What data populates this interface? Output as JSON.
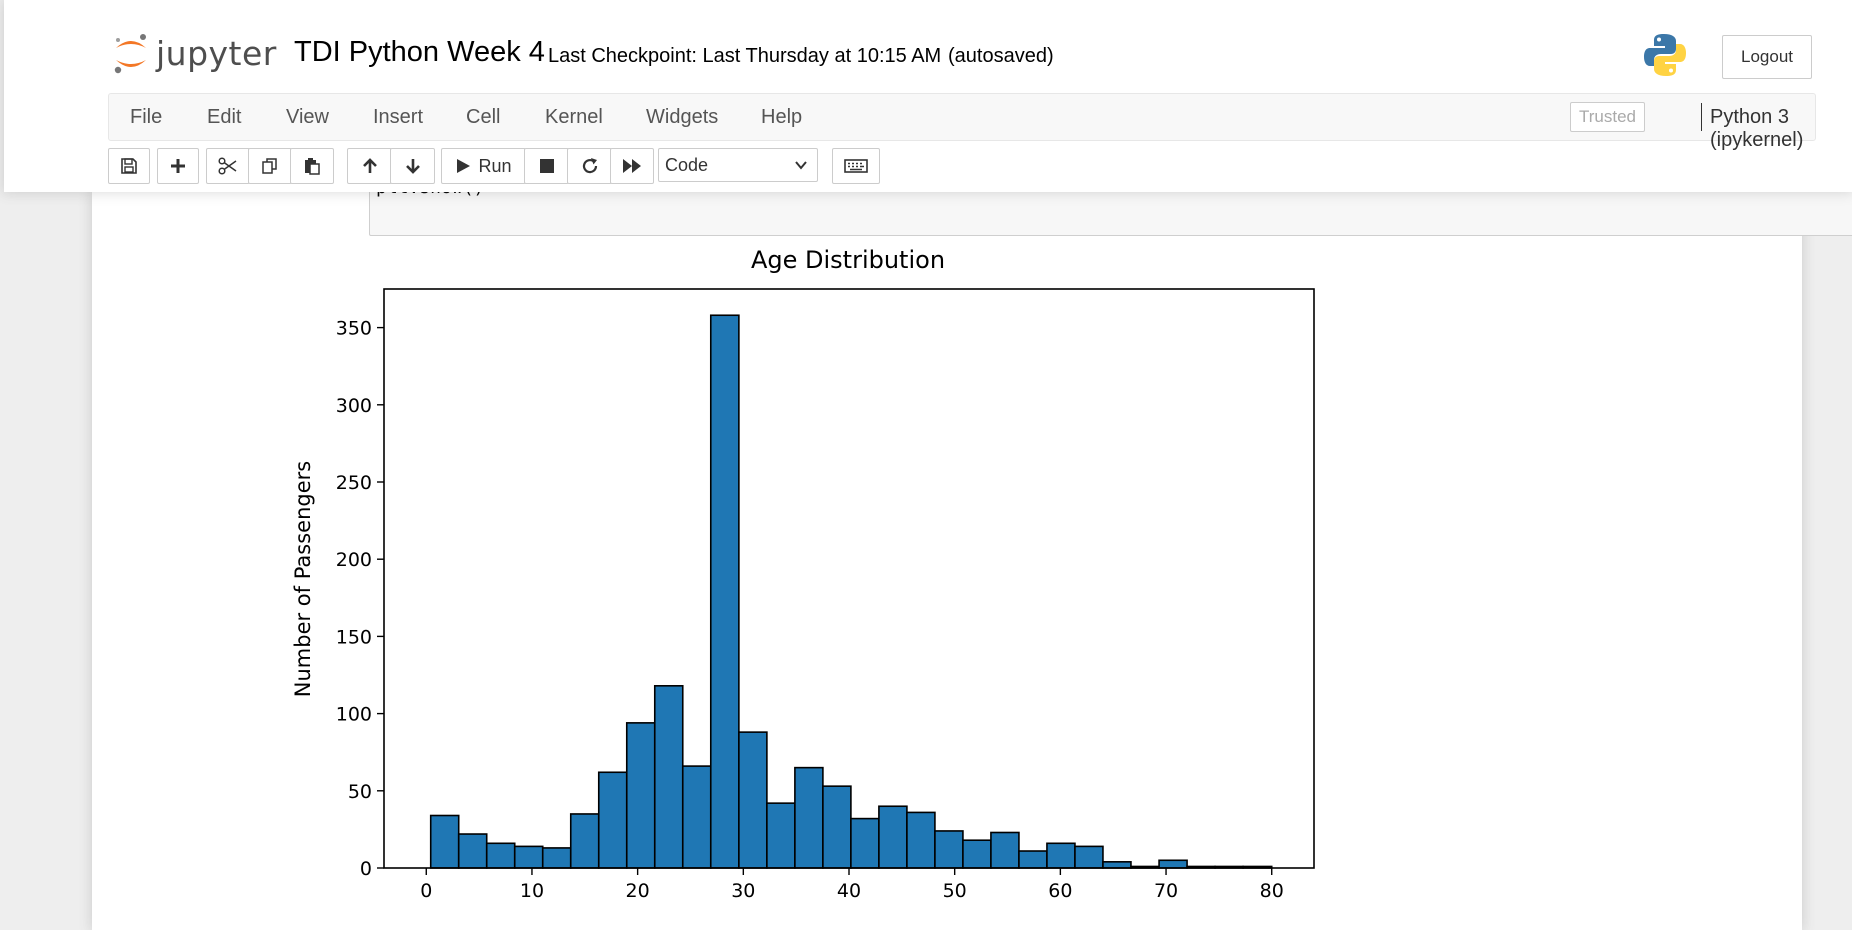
{
  "header": {
    "logo_text": "jupyter",
    "notebook_name": "TDI Python Week 4",
    "checkpoint": "Last Checkpoint: Last Thursday at 10:15 AM",
    "autosave": "(autosaved)",
    "logout_label": "Logout"
  },
  "menubar": {
    "items": [
      "File",
      "Edit",
      "View",
      "Insert",
      "Cell",
      "Kernel",
      "Widgets",
      "Help"
    ],
    "trusted_label": "Trusted",
    "kernel_name": "Python 3 (ipykernel)"
  },
  "toolbar": {
    "run_label": "Run",
    "cell_type": "Code",
    "icons": [
      "save-icon",
      "plus-icon",
      "cut-icon",
      "copy-icon",
      "paste-icon",
      "arrow-up-icon",
      "arrow-down-icon",
      "run-icon",
      "stop-icon",
      "restart-icon",
      "fast-forward-icon",
      "keyboard-icon"
    ]
  },
  "cell": {
    "code_tail": "plt.show()"
  },
  "colors": {
    "bar_fill": "#1f77b4",
    "bar_edge": "#000000",
    "jupyter_orange": "#f37726"
  },
  "chart_data": {
    "type": "bar",
    "title": "Age Distribution",
    "xlabel": "",
    "ylabel": "Number of Passengers",
    "xlim": [
      -4,
      84
    ],
    "ylim": [
      0,
      375
    ],
    "xticks": [
      0,
      10,
      20,
      30,
      40,
      50,
      60,
      70,
      80
    ],
    "yticks": [
      0,
      50,
      100,
      150,
      200,
      250,
      300,
      350
    ],
    "bin_edges": [
      0.42,
      3.07,
      5.72,
      8.37,
      11.02,
      13.67,
      16.32,
      18.97,
      21.62,
      24.27,
      26.92,
      29.58,
      32.23,
      34.88,
      37.53,
      40.18,
      42.83,
      45.48,
      48.13,
      50.78,
      53.43,
      56.08,
      58.73,
      61.38,
      64.03,
      66.68,
      69.34,
      71.99,
      74.64,
      77.29,
      80.0
    ],
    "values": [
      34,
      22,
      16,
      14,
      13,
      35,
      62,
      94,
      118,
      66,
      358,
      88,
      42,
      65,
      53,
      32,
      40,
      36,
      24,
      18,
      23,
      11,
      16,
      14,
      4,
      1,
      5,
      1,
      1,
      1
    ],
    "grid": false
  }
}
